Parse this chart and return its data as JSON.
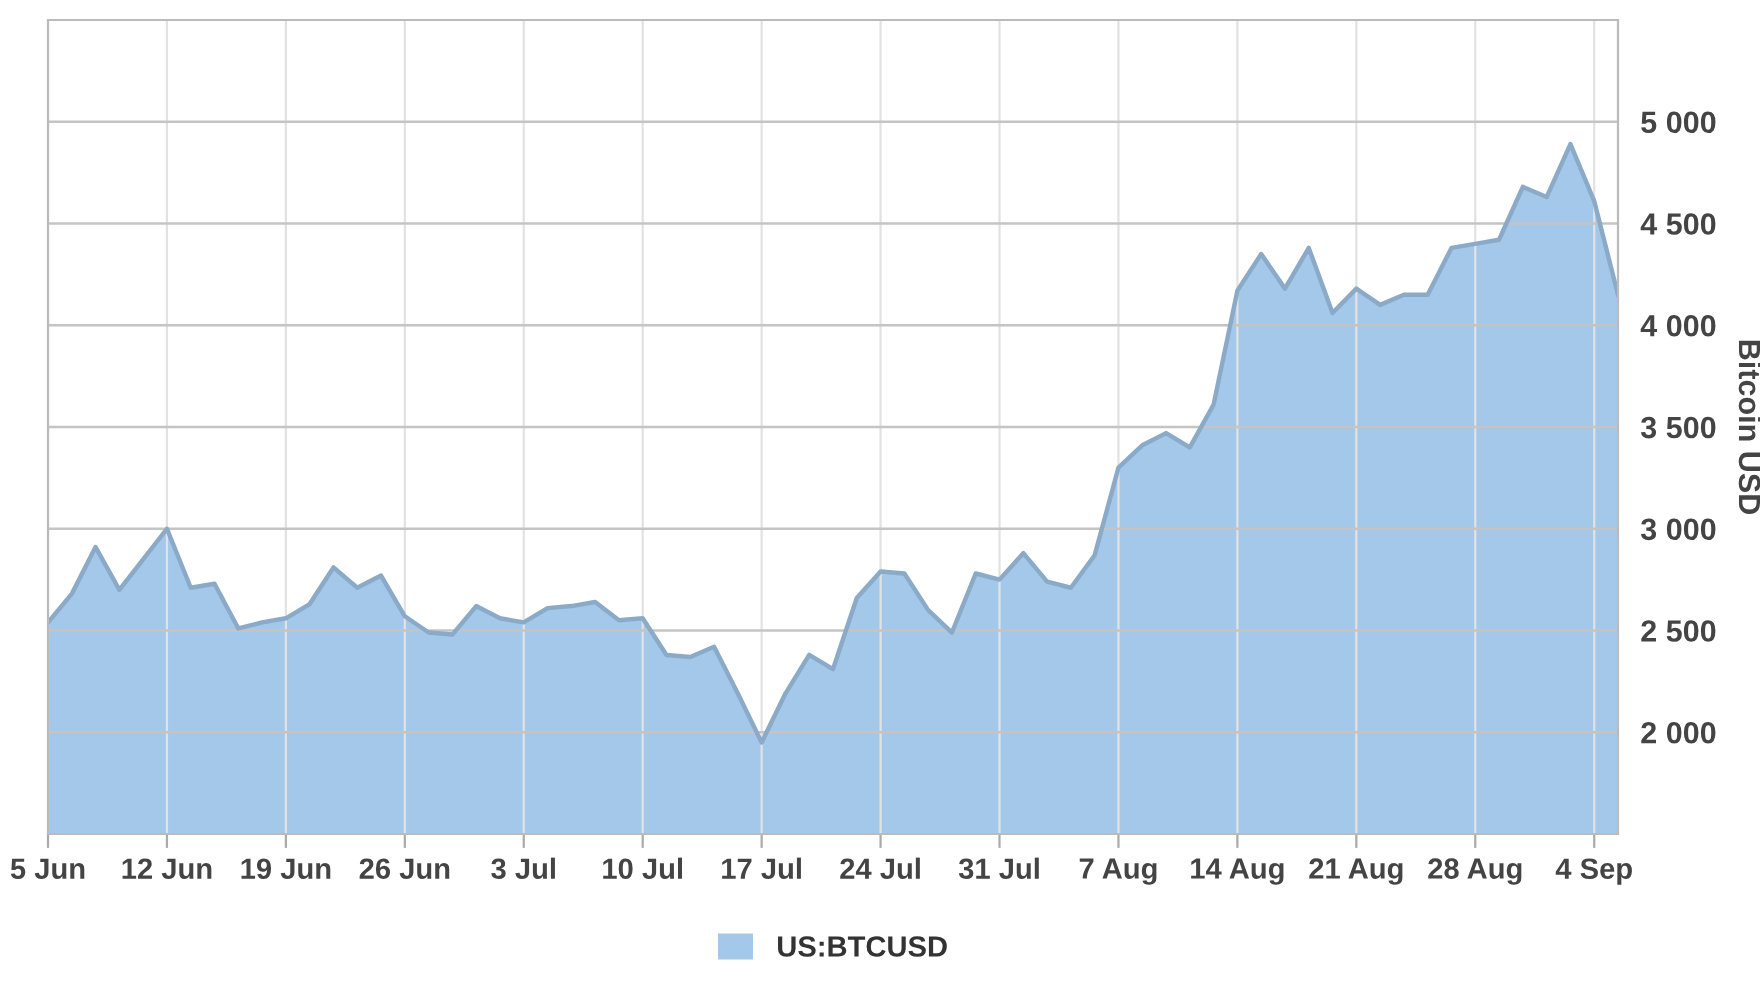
{
  "chart_data": {
    "type": "area",
    "categories": [
      "5 Jun",
      null,
      null,
      null,
      null,
      "12 Jun",
      null,
      null,
      null,
      null,
      "19 Jun",
      null,
      null,
      null,
      null,
      "26 Jun",
      null,
      null,
      null,
      null,
      "3 Jul",
      null,
      null,
      null,
      null,
      "10 Jul",
      null,
      null,
      null,
      null,
      "17 Jul",
      null,
      null,
      null,
      null,
      "24 Jul",
      null,
      null,
      null,
      null,
      "31 Jul",
      null,
      null,
      null,
      null,
      "7 Aug",
      null,
      null,
      null,
      null,
      "14 Aug",
      null,
      null,
      null,
      null,
      "21 Aug",
      null,
      null,
      null,
      null,
      "28 Aug",
      null,
      null,
      null,
      null,
      "4 Sep",
      null
    ],
    "series": [
      {
        "name": "US:BTCUSD",
        "color": "#a3c8ea",
        "values": [
          2540,
          2680,
          2910,
          2700,
          2850,
          3000,
          2710,
          2730,
          2510,
          2540,
          2560,
          2630,
          2810,
          2710,
          2770,
          2570,
          2490,
          2480,
          2620,
          2560,
          2540,
          2610,
          2620,
          2640,
          2550,
          2560,
          2380,
          2370,
          2420,
          2190,
          1950,
          2190,
          2380,
          2310,
          2660,
          2790,
          2780,
          2600,
          2490,
          2780,
          2750,
          2880,
          2740,
          2710,
          2870,
          3300,
          3410,
          3470,
          3400,
          3610,
          4170,
          4350,
          4180,
          4380,
          4060,
          4180,
          4100,
          4150,
          4150,
          4380,
          4400,
          4420,
          4680,
          4630,
          4890,
          4610,
          4150
        ]
      }
    ],
    "ylabel": "Bitcoin USD",
    "ylim": [
      1500,
      5500
    ],
    "yticks": [
      {
        "value": 2000,
        "label": "2 000"
      },
      {
        "value": 2500,
        "label": "2 500"
      },
      {
        "value": 3000,
        "label": "3 000"
      },
      {
        "value": 3500,
        "label": "3 500"
      },
      {
        "value": 4000,
        "label": "4 000"
      },
      {
        "value": 4500,
        "label": "4 500"
      },
      {
        "value": 5000,
        "label": "5 000"
      }
    ],
    "grid": true,
    "legend": "bottom"
  }
}
